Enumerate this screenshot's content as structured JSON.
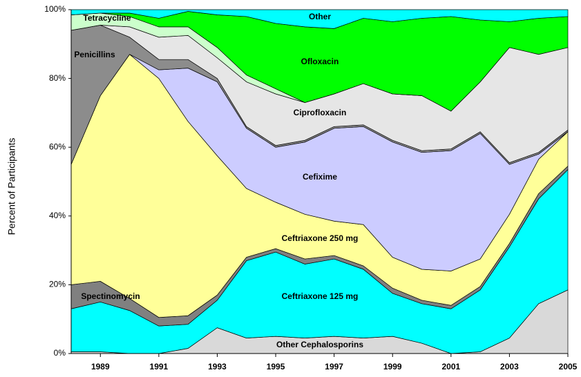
{
  "chart_data": {
    "type": "stacked_area",
    "y_label": "Percent of Participants",
    "x": [
      1988,
      1989,
      1990,
      1991,
      1992,
      1993,
      1994,
      1995,
      1996,
      1997,
      1998,
      1999,
      2000,
      2001,
      2002,
      2003,
      2004,
      2005
    ],
    "xlim": [
      1988,
      2005
    ],
    "xticks": [
      1989,
      1991,
      1993,
      1995,
      1997,
      1999,
      2001,
      2003,
      2005
    ],
    "ylim": [
      0,
      100
    ],
    "yticks": [
      {
        "value": 0,
        "label": "0%"
      },
      {
        "value": 20,
        "label": "20%"
      },
      {
        "value": 40,
        "label": "40%"
      },
      {
        "value": 60,
        "label": "60%"
      },
      {
        "value": 80,
        "label": "80%"
      },
      {
        "value": 100,
        "label": "100%"
      }
    ],
    "series": [
      {
        "name": "Other Cephalosporins",
        "color": "#d9d9d9",
        "values": [
          0.5,
          0.5,
          0,
          0,
          1.5,
          7.5,
          4.5,
          5,
          4.5,
          5,
          4.5,
          5,
          3,
          0,
          0.5,
          4.5,
          14.5,
          18.5
        ]
      },
      {
        "name": "Ceftriaxone 125 mg",
        "color": "#00ffff",
        "values": [
          12.5,
          14.5,
          12.5,
          8,
          7,
          8,
          22.5,
          24.5,
          21.5,
          22.5,
          20,
          12.5,
          11.5,
          13,
          18,
          26.5,
          30.5,
          35
        ]
      },
      {
        "name": "Spectinomycin",
        "color": "#808080",
        "values": [
          7,
          6,
          3.5,
          2.5,
          2.5,
          1.5,
          1,
          1,
          1.5,
          1,
          1,
          1.5,
          1,
          1,
          1,
          1,
          1.5,
          1
        ]
      },
      {
        "name": "Ceftriaxone 250 mg",
        "color": "#ffff99",
        "values": [
          35,
          54,
          71,
          69.5,
          56.5,
          40.5,
          20,
          13.5,
          13,
          10,
          12,
          9,
          9,
          10,
          8,
          8.5,
          10,
          10
        ]
      },
      {
        "name": "Cefixime",
        "color": "#ccccff",
        "values": [
          0,
          0,
          0,
          2.5,
          15.5,
          21.5,
          17.5,
          16,
          21,
          27,
          28.5,
          33.5,
          34,
          35,
          36.5,
          14.5,
          1.5,
          0
        ]
      },
      {
        "name": "Penicillins",
        "color": "#8c8c8c",
        "values": [
          39,
          20.5,
          5,
          3,
          2.5,
          1,
          0.5,
          0.5,
          0.5,
          0.5,
          0.5,
          0.5,
          0.5,
          0.5,
          0.5,
          0.5,
          0.5,
          0.5
        ]
      },
      {
        "name": "Ciprofloxacin",
        "color": "#e6e6e6",
        "values": [
          0,
          0,
          3,
          6.5,
          7,
          6,
          13,
          15,
          11,
          9.5,
          12,
          13.5,
          16,
          11,
          14.5,
          33.5,
          28.5,
          24
        ]
      },
      {
        "name": "Tetracycline",
        "color": "#ccffcc",
        "values": [
          4.5,
          3.5,
          3,
          3,
          2.5,
          3,
          2,
          1.5,
          0,
          0,
          0,
          0,
          0,
          0,
          0,
          0,
          0,
          0
        ]
      },
      {
        "name": "Ofloxacin",
        "color": "#00ff00",
        "values": [
          0,
          0,
          1,
          2.5,
          4.5,
          9.5,
          17,
          19,
          22,
          19,
          19,
          21,
          22.5,
          27.5,
          18,
          7.5,
          10.5,
          9
        ]
      },
      {
        "name": "Other",
        "color": "#00ffff",
        "values": [
          1.5,
          1,
          1,
          2.5,
          0.5,
          1.5,
          2,
          4,
          5,
          5.5,
          2.5,
          3.5,
          2.5,
          2,
          3,
          3.5,
          2.5,
          2
        ]
      }
    ]
  }
}
